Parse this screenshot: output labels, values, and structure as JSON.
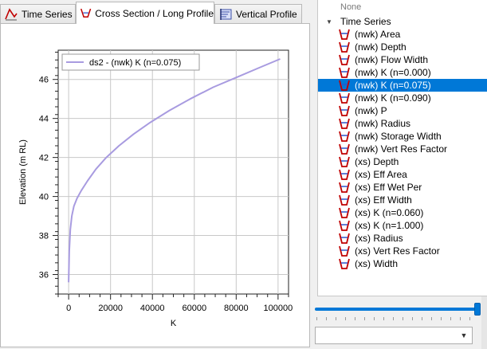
{
  "tabs": [
    {
      "label": "Time Series",
      "icon": "time-series-icon",
      "active": false
    },
    {
      "label": "Cross Section / Long Profile",
      "icon": "cross-section-icon",
      "active": true
    },
    {
      "label": "Vertical Profile",
      "icon": "vertical-profile-icon",
      "active": false
    }
  ],
  "tree": {
    "none_label": "None",
    "group_label": "Time Series",
    "items": [
      {
        "label": "(nwk) Area",
        "selected": false
      },
      {
        "label": "(nwk) Depth",
        "selected": false
      },
      {
        "label": "(nwk) Flow Width",
        "selected": false
      },
      {
        "label": "(nwk) K (n=0.000)",
        "selected": false
      },
      {
        "label": "(nwk) K (n=0.075)",
        "selected": true
      },
      {
        "label": "(nwk) K (n=0.090)",
        "selected": false
      },
      {
        "label": "(nwk) P",
        "selected": false
      },
      {
        "label": "(nwk) Radius",
        "selected": false
      },
      {
        "label": "(nwk) Storage Width",
        "selected": false
      },
      {
        "label": "(nwk) Vert Res Factor",
        "selected": false
      },
      {
        "label": "(xs) Depth",
        "selected": false
      },
      {
        "label": "(xs) Eff Area",
        "selected": false
      },
      {
        "label": "(xs) Eff Wet Per",
        "selected": false
      },
      {
        "label": "(xs) Eff Width",
        "selected": false
      },
      {
        "label": "(xs) K (n=0.060)",
        "selected": false
      },
      {
        "label": "(xs) K (n=1.000)",
        "selected": false
      },
      {
        "label": "(xs) Radius",
        "selected": false
      },
      {
        "label": "(xs) Vert Res Factor",
        "selected": false
      },
      {
        "label": "(xs) Width",
        "selected": false
      }
    ]
  },
  "slider": {
    "value": 1.0
  },
  "combo": {
    "value": ""
  },
  "colors": {
    "series": "#a89be0",
    "selection": "#0078d7",
    "icon_red": "#c00000"
  },
  "chart_data": {
    "type": "line",
    "title": "",
    "xlabel": "K",
    "ylabel": "Elevation (m RL)",
    "xlim": [
      -5000,
      105000
    ],
    "ylim": [
      35.0,
      47.5
    ],
    "xticks": [
      0,
      20000,
      40000,
      60000,
      80000,
      100000
    ],
    "yticks": [
      36,
      38,
      40,
      42,
      44,
      46
    ],
    "grid": true,
    "legend_position": "top-left",
    "series": [
      {
        "name": "ds2 - (nwk) K (n=0.075)",
        "x": [
          0,
          300,
          800,
          1500,
          2500,
          4000,
          6000,
          9000,
          13000,
          18000,
          24000,
          31000,
          39000,
          48000,
          58000,
          69000,
          80000,
          91000,
          101000
        ],
        "y": [
          35.6,
          37.2,
          38.3,
          39.0,
          39.5,
          39.9,
          40.3,
          40.8,
          41.4,
          42.0,
          42.6,
          43.2,
          43.8,
          44.4,
          45.0,
          45.6,
          46.1,
          46.6,
          47.05
        ]
      }
    ]
  }
}
